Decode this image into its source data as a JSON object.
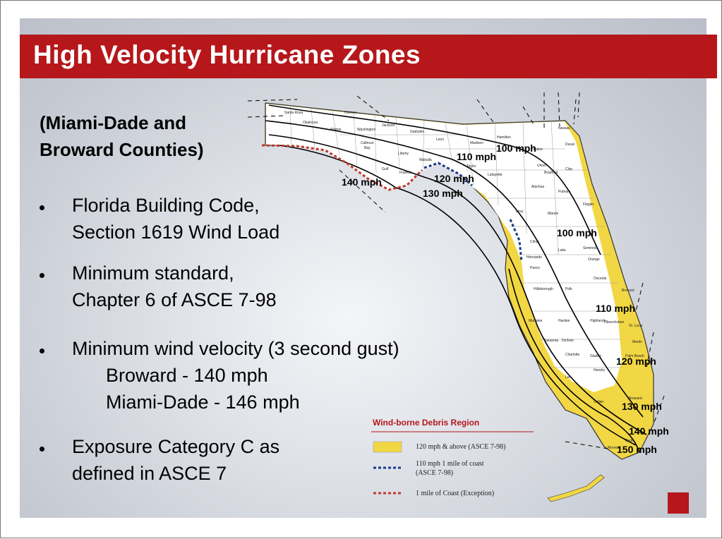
{
  "slide": {
    "title": "High Velocity Hurricane Zones",
    "subtitle": [
      "(Miami-Dade and",
      "Broward Counties)"
    ],
    "bullets": [
      {
        "lines": [
          "Florida Building Code,",
          "Section 1619 Wind Load"
        ]
      },
      {
        "lines": [
          "Minimum standard,",
          "Chapter 6 of ASCE 7-98"
        ]
      },
      {
        "lines": [
          "Minimum wind velocity (3 second gust)"
        ],
        "sub_lines": [
          "Broward - 140 mph",
          "Miami-Dade - 146 mph"
        ]
      },
      {
        "lines": [
          "Exposure Category C as",
          "defined in ASCE 7"
        ]
      }
    ],
    "map": {
      "wind_labels": [
        "100 mph",
        "110 mph",
        "120 mph",
        "130 mph",
        "140 mph",
        "100 mph",
        "110 mph",
        "120 mph",
        "130 mph",
        "140 mph",
        "150 mph"
      ],
      "counties": [
        "Santa Rosa",
        "Okaloosa",
        "Walton",
        "Holmes",
        "Washington",
        "Jackson",
        "Calhoun",
        "Bay",
        "Gadsden",
        "Leon",
        "Liberty",
        "Wakulla",
        "Gulf",
        "Franklin",
        "Madison",
        "Hamilton",
        "Taylor",
        "Lafayette",
        "Nassau",
        "Duval",
        "Baker",
        "Union",
        "Bradford",
        "Clay",
        "Alachua",
        "Putnam",
        "Levy",
        "Marion",
        "Citrus",
        "Lake",
        "Seminole",
        "Orange",
        "Osceola",
        "Polk",
        "Hillsborough",
        "Pasco",
        "Manatee",
        "Hardee",
        "Highlands",
        "Sarasota",
        "DeSoto",
        "Charlotte",
        "Glades",
        "Lee",
        "Hendry",
        "Collier",
        "Broward",
        "Dade",
        "Monroe",
        "Martin",
        "Palm Beach",
        "Okeechobee",
        "Brevard",
        "St. Lucie",
        "Flagler",
        "Hernando"
      ],
      "legend": {
        "title": "Wind-borne Debris Region",
        "items": [
          {
            "lines": [
              "120 mph & above (ASCE 7-98)"
            ]
          },
          {
            "lines": [
              "110 mph 1 mile of coast",
              "(ASCE 7-98)"
            ]
          },
          {
            "lines": [
              "1 mile of Coast (Exception)"
            ]
          }
        ]
      }
    }
  }
}
